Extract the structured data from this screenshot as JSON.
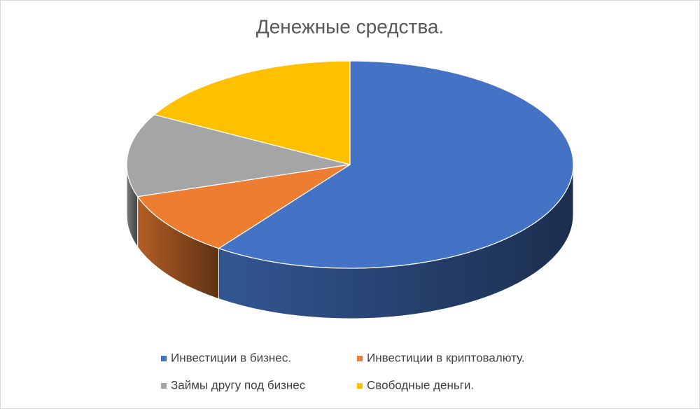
{
  "chart_data": {
    "type": "pie",
    "title": "Денежные средства.",
    "categories": [
      "Инвестиции в бизнес.",
      "Инвестиции в криптовалюту.",
      "Займы другу под бизнес",
      "Свободные деньги."
    ],
    "values": [
      60,
      10,
      13,
      17
    ],
    "colors": [
      "#4472c4",
      "#ed7d31",
      "#a5a5a5",
      "#ffc000"
    ]
  }
}
